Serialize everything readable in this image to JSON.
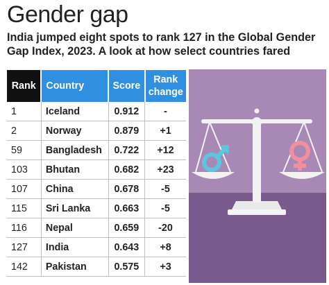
{
  "title": "Gender gap",
  "subtitle": "India jumped eight spots to rank 127 in the Global Gender Gap Index, 2023. A look at how select countries fared",
  "table": {
    "headers": {
      "rank": "Rank",
      "country": "Country",
      "score": "Score",
      "change": "Rank change"
    },
    "rows": [
      {
        "rank": "1",
        "country": "Iceland",
        "score": "0.912",
        "change": "-"
      },
      {
        "rank": "2",
        "country": "Norway",
        "score": "0.879",
        "change": "+1"
      },
      {
        "rank": "59",
        "country": "Bangladesh",
        "score": "0.722",
        "change": "+12"
      },
      {
        "rank": "103",
        "country": "Bhutan",
        "score": "0.682",
        "change": "+23"
      },
      {
        "rank": "107",
        "country": "China",
        "score": "0.678",
        "change": "-5"
      },
      {
        "rank": "115",
        "country": "Sri Lanka",
        "score": "0.663",
        "change": "-5"
      },
      {
        "rank": "116",
        "country": "Nepal",
        "score": "0.659",
        "change": "-20"
      },
      {
        "rank": "127",
        "country": "India",
        "score": "0.643",
        "change": "+8"
      },
      {
        "rank": "142",
        "country": "Pakistan",
        "score": "0.575",
        "change": "+3"
      }
    ]
  },
  "colors": {
    "header_blue": "#2f8fe0",
    "header_dark": "#111111",
    "bg_light_purple": "#a889b6",
    "bg_dark_purple": "#7a5a8c",
    "male_symbol": "#5ec5de",
    "female_symbol": "#f08fa0",
    "scale": "#f2f2f2"
  },
  "illustration": {
    "male_icon": "male-symbol-icon",
    "female_icon": "female-symbol-icon",
    "scale_icon": "balance-scale-icon"
  }
}
